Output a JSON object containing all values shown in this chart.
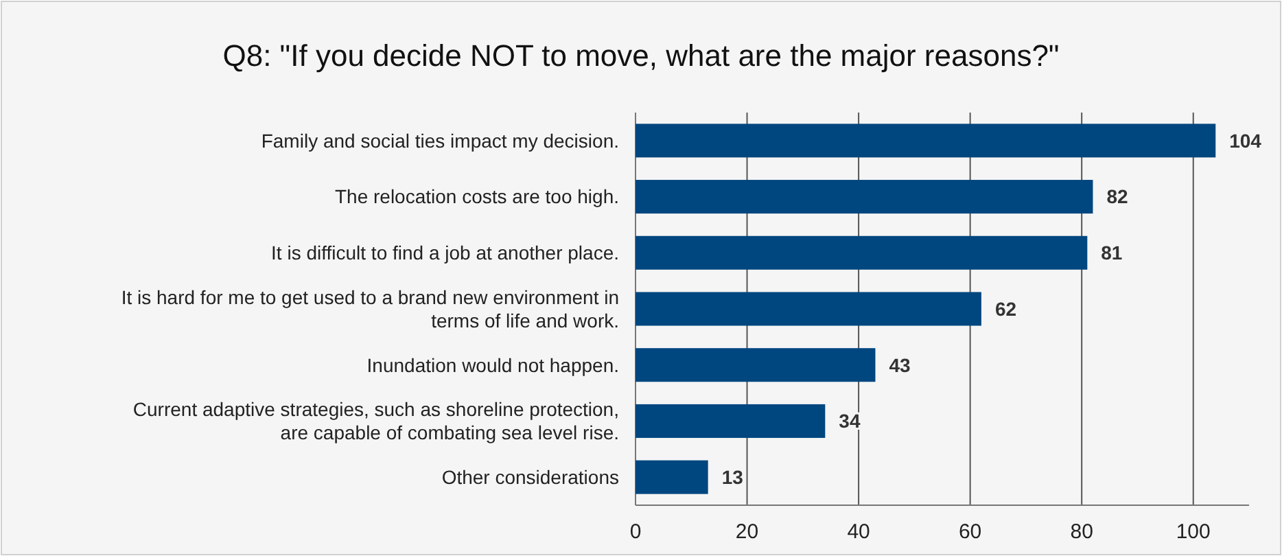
{
  "chart_data": {
    "type": "bar",
    "orientation": "horizontal",
    "title": "Q8: \"If you decide NOT to move, what are the major reasons?\"",
    "categories": [
      "Family and social ties impact my decision.",
      "The relocation costs are too high.",
      "It is difficult to find a job at another place.",
      "It is hard for me to get used to a brand new environment in terms of life and work.",
      "Inundation would not happen.",
      "Current adaptive strategies, such as shoreline protection, are capable of combating sea level rise.",
      "Other considerations"
    ],
    "values": [
      104,
      82,
      81,
      62,
      43,
      34,
      13
    ],
    "color": "#00467f",
    "xlim": [
      0,
      110
    ],
    "xticks": [
      0,
      20,
      40,
      60,
      80,
      100
    ],
    "grid": "x",
    "data_labels": true
  }
}
